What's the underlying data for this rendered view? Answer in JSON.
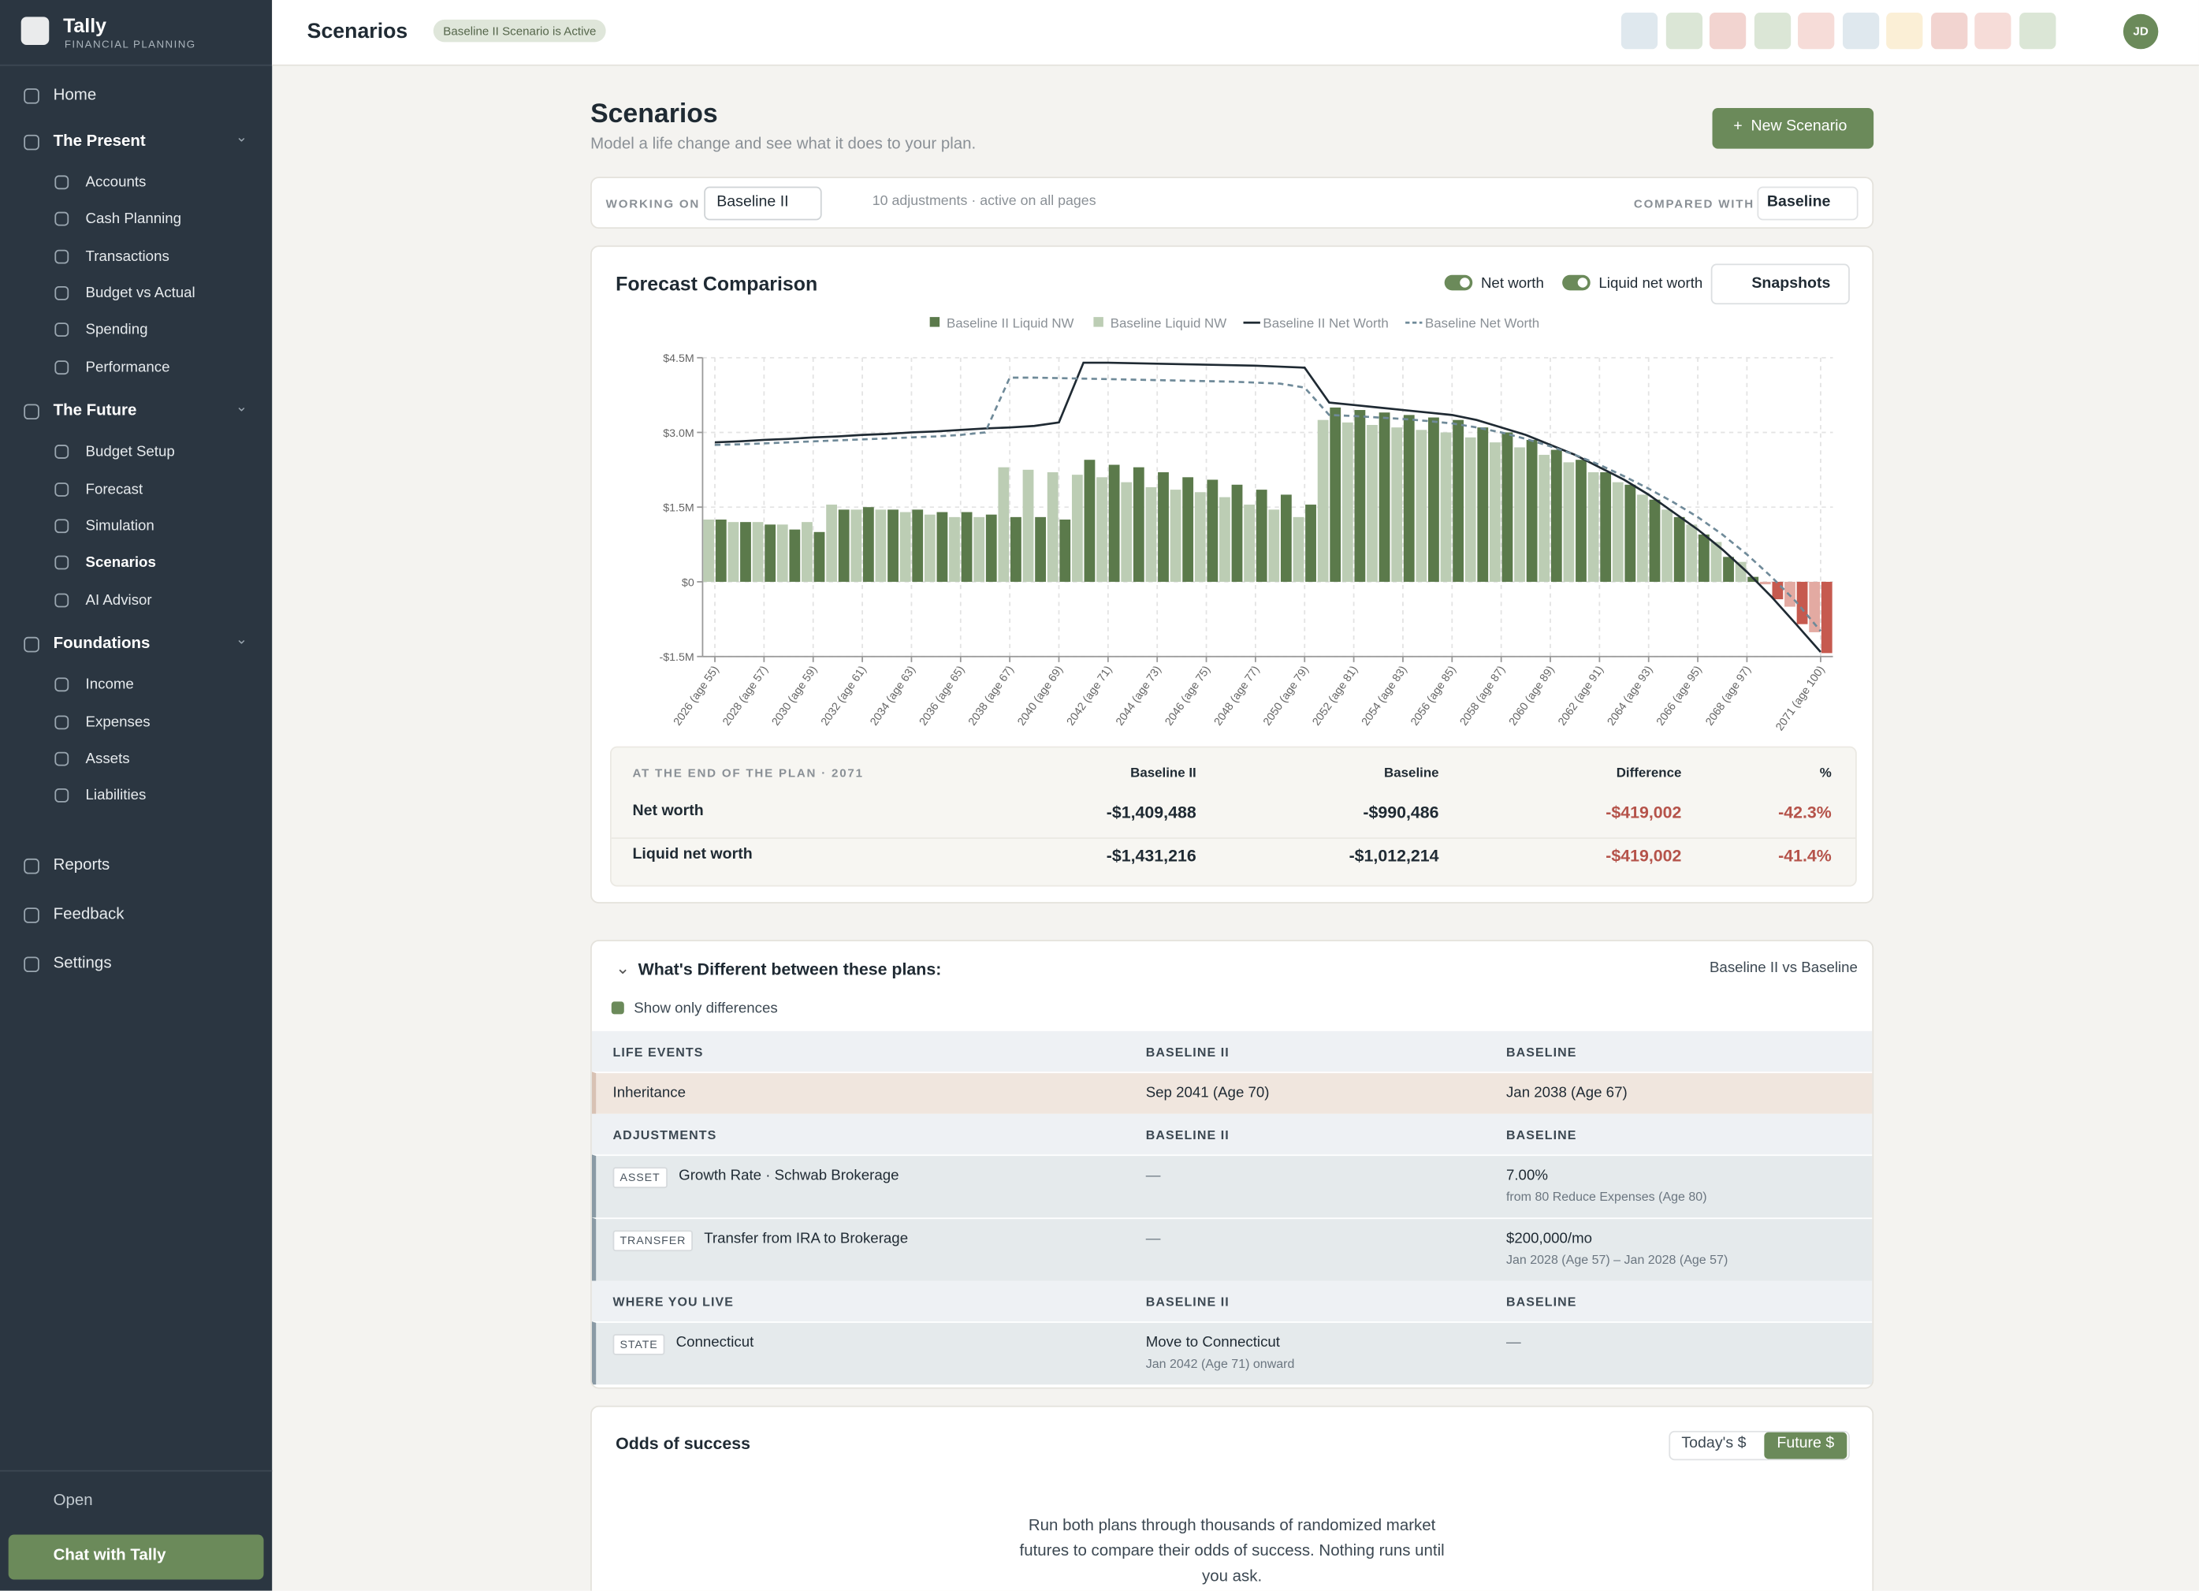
{
  "topbar": {
    "title": "Scenarios",
    "badge": "Baseline II Scenario is Active",
    "avatar": "JD"
  },
  "sidebar": {
    "brand": "Tally",
    "brand_sub": "FINANCIAL PLANNING",
    "nav": [
      {
        "label": "Home"
      },
      {
        "label": "The Present",
        "children": [
          "Accounts",
          "Cash Planning",
          "Transactions",
          "Budget vs Actual",
          "Spending",
          "Performance"
        ]
      },
      {
        "label": "The Future",
        "children": [
          "Budget Setup",
          "Forecast",
          "Simulation",
          "Scenarios",
          "AI Advisor"
        ]
      },
      {
        "label": "Foundations",
        "children": [
          "Income",
          "Expenses",
          "Assets",
          "Liabilities"
        ]
      },
      {
        "label": "Reports"
      },
      {
        "label": "Feedback"
      },
      {
        "label": "Settings"
      }
    ],
    "active": "Scenarios",
    "open": "Open",
    "chat": "Chat with Tally"
  },
  "header": {
    "title": "Scenarios",
    "subtitle": "Model a life change and see what it does to your plan.",
    "button": "New Scenario"
  },
  "working": {
    "label": "WORKING ON",
    "scenario": "Baseline II",
    "info": "10 adjustments · active on all pages",
    "compare_label": "COMPARED WITH",
    "compare": "Baseline"
  },
  "forecast": {
    "title": "Forecast Comparison",
    "toggles": [
      "Net worth",
      "Liquid net worth"
    ],
    "snapshots": "Snapshots"
  },
  "chart_data": {
    "type": "bar-line",
    "ylim": [
      -1500000,
      4500000
    ],
    "yticks": [
      {
        "value": -1500000,
        "label": "-$1.5M"
      },
      {
        "value": 0,
        "label": "$0"
      },
      {
        "value": 1500000,
        "label": "$1.5M"
      },
      {
        "value": 3000000,
        "label": "$3.0M"
      },
      {
        "value": 4500000,
        "label": "$4.5M"
      }
    ],
    "grid": true,
    "categories": [
      "2026 (age 55)",
      null,
      "2028 (age 57)",
      null,
      "2030 (age 59)",
      null,
      "2032 (age 61)",
      null,
      "2034 (age 63)",
      null,
      "2036 (age 65)",
      null,
      "2038 (age 67)",
      null,
      "2040 (age 69)",
      null,
      "2042 (age 71)",
      null,
      "2044 (age 73)",
      null,
      "2046 (age 75)",
      null,
      "2048 (age 77)",
      null,
      "2050 (age 79)",
      null,
      "2052 (age 81)",
      null,
      "2054 (age 83)",
      null,
      "2056 (age 85)",
      null,
      "2058 (age 87)",
      null,
      "2060 (age 89)",
      null,
      "2062 (age 91)",
      null,
      "2064 (age 93)",
      null,
      "2066 (age 95)",
      null,
      "2068 (age 97)",
      null,
      null,
      "2071 (age 100)"
    ],
    "series": [
      {
        "name": "Baseline II Liquid NW",
        "type": "bar",
        "color": "#5b7a4b",
        "negative_color": "#c65a4f",
        "values": [
          1250000,
          1200000,
          1150000,
          1050000,
          1000000,
          1450000,
          1500000,
          1450000,
          1450000,
          1400000,
          1400000,
          1350000,
          1300000,
          1300000,
          1250000,
          2450000,
          2350000,
          2300000,
          2200000,
          2100000,
          2050000,
          1950000,
          1850000,
          1750000,
          1550000,
          3500000,
          3450000,
          3400000,
          3350000,
          3300000,
          3250000,
          3100000,
          3000000,
          2850000,
          2650000,
          2450000,
          2200000,
          1950000,
          1650000,
          1300000,
          950000,
          500000,
          100000,
          -350000,
          -850000,
          -1431216
        ]
      },
      {
        "name": "Baseline Liquid NW",
        "type": "bar",
        "color": "#bccdb4",
        "negative_color": "#e3aaa2",
        "values": [
          1250000,
          1200000,
          1200000,
          1150000,
          1200000,
          1550000,
          1450000,
          1450000,
          1400000,
          1350000,
          1300000,
          1300000,
          2300000,
          2250000,
          2200000,
          2150000,
          2100000,
          2000000,
          1900000,
          1850000,
          1800000,
          1700000,
          1550000,
          1450000,
          1300000,
          3250000,
          3200000,
          3150000,
          3100000,
          3050000,
          3000000,
          2900000,
          2800000,
          2700000,
          2550000,
          2400000,
          2200000,
          2000000,
          1750000,
          1450000,
          1150000,
          800000,
          400000,
          -50000,
          -500000,
          -1012214
        ]
      },
      {
        "name": "Baseline II Net Worth",
        "type": "line",
        "color": "#1f2a33",
        "dash": false,
        "values": [
          2800000,
          2820000,
          2850000,
          2870000,
          2900000,
          2920000,
          2950000,
          2970000,
          3000000,
          3020000,
          3050000,
          3080000,
          3100000,
          3130000,
          3200000,
          4400000,
          4400000,
          4390000,
          4380000,
          4370000,
          4360000,
          4350000,
          4340000,
          4320000,
          4300000,
          3600000,
          3550000,
          3500000,
          3450000,
          3400000,
          3350000,
          3250000,
          3100000,
          2950000,
          2750000,
          2550000,
          2300000,
          2050000,
          1750000,
          1400000,
          1050000,
          650000,
          200000,
          -300000,
          -850000,
          -1409488
        ]
      },
      {
        "name": "Baseline Net Worth",
        "type": "line",
        "color": "#6f8a99",
        "dash": true,
        "values": [
          2750000,
          2760000,
          2780000,
          2800000,
          2820000,
          2840000,
          2860000,
          2880000,
          2900000,
          2920000,
          2950000,
          3000000,
          4100000,
          4100000,
          4090000,
          4080000,
          4070000,
          4060000,
          4050000,
          4040000,
          4030000,
          4020000,
          4000000,
          3980000,
          3900000,
          3350000,
          3330000,
          3300000,
          3270000,
          3230000,
          3180000,
          3100000,
          3000000,
          2870000,
          2720000,
          2550000,
          2350000,
          2120000,
          1870000,
          1600000,
          1300000,
          950000,
          550000,
          100000,
          -400000,
          -990486
        ]
      }
    ]
  },
  "end_table": {
    "title": "AT THE END OF THE PLAN · 2071",
    "columns": [
      "Baseline II",
      "Baseline",
      "Difference",
      "%"
    ],
    "rows": [
      [
        "Net worth",
        "-$1,409,488",
        "-$990,486",
        "-$419,002",
        "-42.3%"
      ],
      [
        "Liquid net worth",
        "-$1,431,216",
        "-$1,012,214",
        "-$419,002",
        "-41.4%"
      ]
    ]
  },
  "differences": {
    "title": "What's Different between these plans:",
    "subtitle": "Baseline II vs Baseline",
    "filter": "Show only differences",
    "sections": [
      {
        "header": [
          "LIFE EVENTS",
          "BASELINE II",
          "BASELINE"
        ],
        "style": "event",
        "rows": [
          {
            "name": "Inheritance",
            "a": [
              "Sep 2041 (Age 70)"
            ],
            "b": [
              "Jan 2038 (Age 67)"
            ]
          }
        ]
      },
      {
        "header": [
          "ADJUSTMENTS",
          "BASELINE II",
          "BASELINE"
        ],
        "style": "adjust",
        "rows": [
          {
            "tag": "ASSET",
            "name": "Growth Rate · Schwab Brokerage",
            "a": [
              "—"
            ],
            "b": [
              "7.00%",
              "from 80 Reduce Expenses (Age 80)"
            ]
          },
          {
            "tag": "TRANSFER",
            "name": "Transfer from IRA to Brokerage",
            "a": [
              "—"
            ],
            "b": [
              "$200,000/mo",
              "Jan 2028 (Age 57) – Jan 2028 (Age 57)"
            ]
          }
        ]
      },
      {
        "header": [
          "WHERE YOU LIVE",
          "BASELINE II",
          "BASELINE"
        ],
        "style": "adjust",
        "rows": [
          {
            "tag": "STATE",
            "name": "Connecticut",
            "a": [
              "Move to Connecticut",
              "Jan 2042 (Age 71) onward"
            ],
            "b": [
              "—"
            ]
          }
        ]
      }
    ]
  },
  "odds": {
    "title": "Odds of success",
    "options": [
      "Today's $",
      "Future $"
    ],
    "text": "Run both plans through thousands of randomized market futures to compare their odds of success. Nothing runs until you ask."
  }
}
